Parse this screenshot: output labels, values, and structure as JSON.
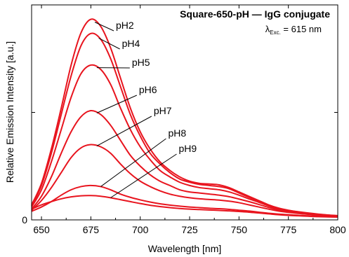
{
  "chart_data": {
    "type": "line",
    "title": "Square-650-pH — IgG conjugate",
    "annotation": {
      "symbol": "λ",
      "subscript": "Exc.",
      "text": " = 615 nm"
    },
    "xlabel": "Wavelength [nm]",
    "ylabel": "Relative Emission Intensity [a.u.]",
    "xlim": [
      645,
      800
    ],
    "ylim": [
      0,
      1
    ],
    "xticks": [
      650,
      675,
      700,
      725,
      750,
      775,
      800
    ],
    "xtick_labels": [
      "650",
      "675",
      "700",
      "725",
      "750",
      "775",
      "800"
    ],
    "yticks": [
      0
    ],
    "ytick_labels": [
      "0"
    ],
    "grid": false,
    "legend": "inline labels with leader lines",
    "line_color": "#e8141e",
    "x": [
      645,
      650,
      655,
      660,
      665,
      670,
      675,
      680,
      685,
      690,
      695,
      700,
      705,
      710,
      715,
      720,
      725,
      730,
      735,
      740,
      745,
      750,
      755,
      760,
      765,
      770,
      775,
      780,
      785,
      790,
      795,
      800
    ],
    "series": [
      {
        "name": "pH2",
        "label_at_x": 677,
        "values": [
          0.07,
          0.17,
          0.33,
          0.52,
          0.72,
          0.87,
          0.933,
          0.9,
          0.8,
          0.66,
          0.52,
          0.41,
          0.33,
          0.27,
          0.23,
          0.2,
          0.18,
          0.17,
          0.167,
          0.163,
          0.15,
          0.13,
          0.11,
          0.09,
          0.07,
          0.055,
          0.045,
          0.038,
          0.032,
          0.027,
          0.023,
          0.02
        ]
      },
      {
        "name": "pH4",
        "label_at_x": 679,
        "values": [
          0.065,
          0.16,
          0.31,
          0.49,
          0.67,
          0.81,
          0.867,
          0.84,
          0.75,
          0.62,
          0.49,
          0.39,
          0.31,
          0.26,
          0.22,
          0.19,
          0.175,
          0.165,
          0.16,
          0.155,
          0.145,
          0.125,
          0.105,
          0.087,
          0.068,
          0.053,
          0.044,
          0.037,
          0.031,
          0.026,
          0.022,
          0.019
        ]
      },
      {
        "name": "pH5",
        "label_at_x": 678,
        "values": [
          0.06,
          0.14,
          0.27,
          0.42,
          0.57,
          0.68,
          0.72,
          0.7,
          0.63,
          0.52,
          0.42,
          0.34,
          0.28,
          0.23,
          0.2,
          0.175,
          0.16,
          0.15,
          0.145,
          0.14,
          0.13,
          0.115,
          0.098,
          0.082,
          0.065,
          0.05,
          0.042,
          0.035,
          0.03,
          0.025,
          0.021,
          0.018
        ]
      },
      {
        "name": "pH6",
        "label_at_x": 678,
        "values": [
          0.05,
          0.11,
          0.2,
          0.31,
          0.41,
          0.48,
          0.508,
          0.49,
          0.44,
          0.37,
          0.3,
          0.25,
          0.21,
          0.18,
          0.16,
          0.14,
          0.13,
          0.125,
          0.12,
          0.115,
          0.108,
          0.097,
          0.085,
          0.072,
          0.058,
          0.046,
          0.039,
          0.033,
          0.028,
          0.024,
          0.02,
          0.017
        ]
      },
      {
        "name": "pH7",
        "label_at_x": 678,
        "values": [
          0.045,
          0.09,
          0.15,
          0.22,
          0.29,
          0.335,
          0.35,
          0.34,
          0.31,
          0.26,
          0.215,
          0.18,
          0.155,
          0.135,
          0.12,
          0.11,
          0.103,
          0.098,
          0.095,
          0.092,
          0.087,
          0.08,
          0.07,
          0.06,
          0.05,
          0.041,
          0.035,
          0.03,
          0.026,
          0.022,
          0.019,
          0.016
        ]
      },
      {
        "name": "pH8",
        "label_at_x": 680,
        "values": [
          0.04,
          0.06,
          0.085,
          0.115,
          0.14,
          0.155,
          0.16,
          0.155,
          0.14,
          0.12,
          0.105,
          0.093,
          0.083,
          0.075,
          0.069,
          0.064,
          0.06,
          0.057,
          0.054,
          0.052,
          0.049,
          0.045,
          0.041,
          0.036,
          0.031,
          0.027,
          0.024,
          0.021,
          0.019,
          0.017,
          0.015,
          0.014
        ]
      },
      {
        "name": "pH9",
        "label_at_x": 685,
        "values": [
          0.05,
          0.07,
          0.085,
          0.098,
          0.107,
          0.112,
          0.113,
          0.11,
          0.103,
          0.094,
          0.085,
          0.076,
          0.068,
          0.062,
          0.057,
          0.053,
          0.05,
          0.048,
          0.046,
          0.044,
          0.042,
          0.039,
          0.036,
          0.032,
          0.028,
          0.024,
          0.021,
          0.019,
          0.017,
          0.015,
          0.014,
          0.013
        ]
      }
    ]
  }
}
